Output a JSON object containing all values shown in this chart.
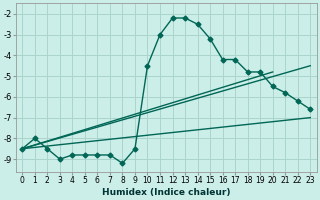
{
  "xlabel": "Humidex (Indice chaleur)",
  "bg_color": "#cceee8",
  "grid_color": "#aad4cc",
  "line_color": "#006655",
  "xlim": [
    -0.5,
    23.5
  ],
  "ylim": [
    -9.6,
    -1.5
  ],
  "yticks": [
    -9,
    -8,
    -7,
    -6,
    -5,
    -4,
    -3,
    -2
  ],
  "xticks": [
    0,
    1,
    2,
    3,
    4,
    5,
    6,
    7,
    8,
    9,
    10,
    11,
    12,
    13,
    14,
    15,
    16,
    17,
    18,
    19,
    20,
    21,
    22,
    23
  ],
  "line1_x": [
    0,
    1,
    2,
    3,
    4,
    5,
    6,
    7,
    8,
    9,
    10,
    11,
    12,
    13,
    14,
    15,
    16,
    17,
    18,
    19,
    20,
    21,
    22,
    23
  ],
  "line1_y": [
    -8.5,
    -8.0,
    -8.5,
    -9.0,
    -8.8,
    -8.8,
    -8.8,
    -8.8,
    -9.2,
    -8.5,
    -4.5,
    -3.0,
    -2.2,
    -2.2,
    -2.5,
    -3.2,
    -4.2,
    -4.2,
    -4.8,
    -4.8,
    -5.5,
    -5.8,
    -6.2,
    -6.6
  ],
  "line2_x": [
    0,
    23
  ],
  "line2_y": [
    -8.5,
    -7.0
  ],
  "line3_x": [
    0,
    23
  ],
  "line3_y": [
    -8.5,
    -4.5
  ],
  "line4_x": [
    0,
    20
  ],
  "line4_y": [
    -8.5,
    -4.8
  ],
  "marker": "D",
  "marker_size": 2.5,
  "line_width": 1.0,
  "tick_fontsize": 5.5,
  "xlabel_fontsize": 6.5
}
